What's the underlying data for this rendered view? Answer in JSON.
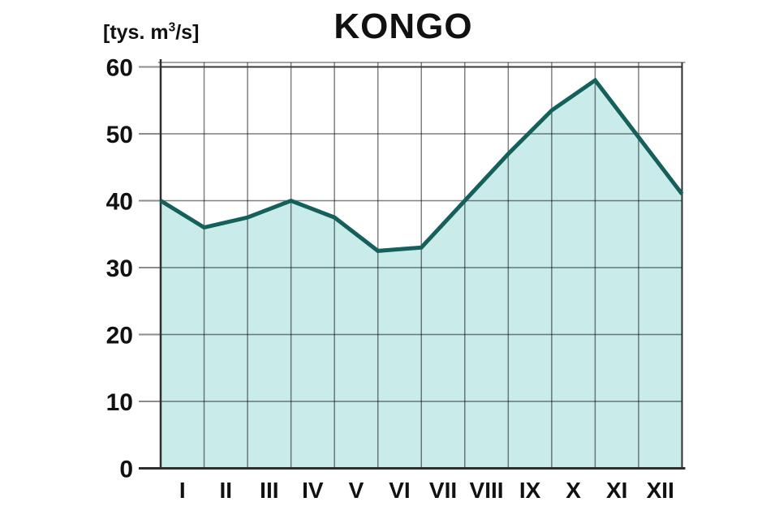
{
  "chart": {
    "title": "KONGO",
    "unit_label": {
      "prefix": "[tys. m",
      "sup": "3",
      "suffix": "/s]"
    }
  },
  "chart_data": {
    "type": "area",
    "title": "KONGO",
    "ylabel": "[tys. m3/s]",
    "xlabel": "",
    "categories": [
      "I",
      "II",
      "III",
      "IV",
      "V",
      "VI",
      "VII",
      "VIII",
      "IX",
      "X",
      "XI",
      "XII"
    ],
    "values": [
      40,
      36,
      37.5,
      40,
      37.5,
      32.5,
      33,
      40,
      47,
      53.5,
      58,
      49.5
    ],
    "closing_value": 41,
    "value_positions": "month-start-gridlines",
    "ylim": [
      0,
      60
    ],
    "yticks": [
      0,
      10,
      20,
      30,
      40,
      50,
      60
    ],
    "grid": true,
    "legend": "none",
    "colors": {
      "area_fill": "#c9eceb",
      "line": "#16605b",
      "grid": "rgba(0,0,0,0.50)",
      "tick": "rgba(0,0,0,0.45)",
      "frame_light": "rgba(0,0,0,0.35)",
      "axis": "#2e2e2e",
      "text": "#111111"
    }
  }
}
